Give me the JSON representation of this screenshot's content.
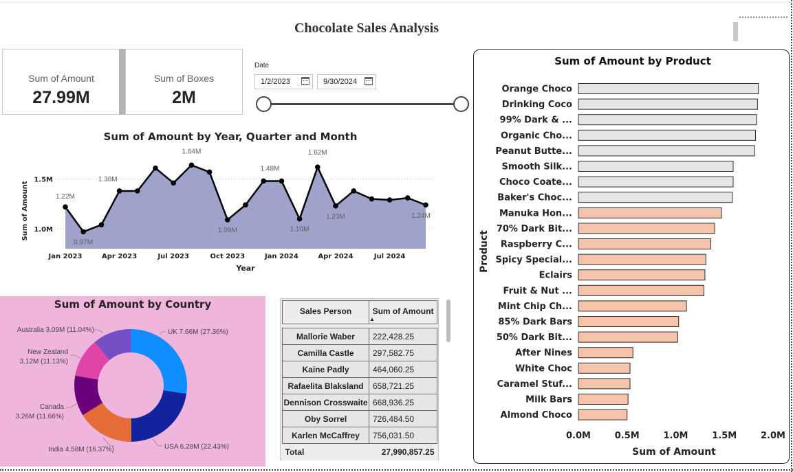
{
  "report": {
    "title": "Chocolate Sales Analysis"
  },
  "kpis": [
    {
      "label": "Sum of Amount",
      "value": "27.99M"
    },
    {
      "label": "Sum of Boxes",
      "value": "2M"
    }
  ],
  "date_slicer": {
    "title": "Date",
    "start": "1/2/2023",
    "end": "9/30/2024"
  },
  "colors": {
    "line": "#000000",
    "area": "#9fa2cb",
    "pie_panel": "#f0b5dc",
    "bar_gray": "#e6e6e6",
    "bar_salmon": "#f5c4aa"
  },
  "line_chart": {
    "title": "Sum of Amount by Year, Quarter and Month",
    "xlabel": "Year",
    "ylabel": "Sum of Amount",
    "ytick_labels": [
      "1.5M",
      "1.0M"
    ],
    "xtick_labels": [
      "Jan 2023",
      "Apr 2023",
      "Jul 2023",
      "Oct 2023",
      "Jan 2024",
      "Apr 2024",
      "Jul 2024"
    ],
    "point_labels": [
      "1.22M",
      "0.97M",
      "1.38M",
      "1.64M",
      "1.09M",
      "1.48M",
      "1.10M",
      "1.62M",
      "1.23M",
      "1.24M"
    ]
  },
  "donut_chart": {
    "title": "Sum of Amount by Country",
    "labels": [
      "UK 7.66M (27.36%)",
      "USA 6.28M (22.43%)",
      "India 4.58M (16.37%)",
      "Canada",
      "3.26M (11.66%)",
      "New Zealand",
      "3.12M (11.13%)",
      "Australia 3.09M (11.04%)"
    ]
  },
  "sales_table": {
    "headers": {
      "person": "Sales Person",
      "amount": "Sum of Amount"
    },
    "rows": [
      {
        "person": "Mallorie Waber",
        "amount": "222,428.25"
      },
      {
        "person": "Camilla Castle",
        "amount": "297,582.75"
      },
      {
        "person": "Kaine Padly",
        "amount": "464,060.25"
      },
      {
        "person": "Rafaelita Blaksland",
        "amount": "658,721.25"
      },
      {
        "person": "Dennison Crosswaite",
        "amount": "668,936.25"
      },
      {
        "person": "Oby Sorrel",
        "amount": "726,484.50"
      },
      {
        "person": "Karlen McCaffrey",
        "amount": "756,031.50"
      }
    ],
    "total_label": "Total",
    "total_value": "27,990,857.25"
  },
  "bar_chart": {
    "title": "Sum of Amount by Product",
    "ylabel": "Product",
    "xlabel": "Sum of Amount",
    "xtick_labels": [
      "0.0M",
      "0.5M",
      "1.0M",
      "1.5M",
      "2.0M"
    ],
    "product_labels": [
      "Orange Choco",
      "Drinking Coco",
      "99% Dark & ...",
      "Organic Cho...",
      "Peanut Butte...",
      "Smooth Silk...",
      "Choco Coate...",
      "Baker's Choc...",
      "Manuka Hon...",
      "70% Dark Bit...",
      "Raspberry C...",
      "Spicy Special...",
      "Eclairs",
      "Fruit & Nut ...",
      "Mint Chip Ch...",
      "85% Dark Bars",
      "50% Dark Bit...",
      "After Nines",
      "White Choc",
      "Caramel Stuf...",
      "Milk Bars",
      "Almond Choco"
    ]
  },
  "chart_data": [
    {
      "type": "area",
      "title": "Sum of Amount by Year, Quarter and Month",
      "xlabel": "Year",
      "ylabel": "Sum of Amount",
      "x": [
        "Jan 2023",
        "Feb 2023",
        "Mar 2023",
        "Apr 2023",
        "May 2023",
        "Jun 2023",
        "Jul 2023",
        "Aug 2023",
        "Sep 2023",
        "Oct 2023",
        "Nov 2023",
        "Dec 2023",
        "Jan 2024",
        "Feb 2024",
        "Mar 2024",
        "Apr 2024",
        "May 2024",
        "Jun 2024",
        "Jul 2024",
        "Aug 2024",
        "Sep 2024"
      ],
      "values": [
        1.22,
        0.97,
        1.04,
        1.38,
        1.38,
        1.61,
        1.46,
        1.64,
        1.57,
        1.09,
        1.24,
        1.48,
        1.48,
        1.1,
        1.62,
        1.23,
        1.38,
        1.3,
        1.29,
        1.31,
        1.24
      ],
      "ylim": [
        0.8,
        1.78
      ]
    },
    {
      "type": "pie",
      "title": "Sum of Amount by Country",
      "categories": [
        "UK",
        "USA",
        "India",
        "Canada",
        "New Zealand",
        "Australia"
      ],
      "values": [
        7.66,
        6.28,
        4.58,
        3.26,
        3.12,
        3.09
      ],
      "percents": [
        27.36,
        22.43,
        16.37,
        11.66,
        11.13,
        11.04
      ],
      "colors": [
        "#118dff",
        "#12239e",
        "#e66c37",
        "#6b007b",
        "#e044a7",
        "#744ec2"
      ]
    },
    {
      "type": "bar",
      "title": "Sum of Amount by Product",
      "xlabel": "Sum of Amount",
      "ylabel": "Product",
      "categories": [
        "Orange Choco",
        "Drinking Coco",
        "99% Dark & ...",
        "Organic Cho...",
        "Peanut Butte...",
        "Smooth Silk...",
        "Choco Coate...",
        "Baker's Choc...",
        "Manuka Hon...",
        "70% Dark Bit...",
        "Raspberry C...",
        "Spicy Special...",
        "Eclairs",
        "Fruit & Nut ...",
        "Mint Chip Ch...",
        "85% Dark Bars",
        "50% Dark Bit...",
        "After Nines",
        "White Choc",
        "Caramel Stuf...",
        "Milk Bars",
        "Almond Choco"
      ],
      "values": [
        1.85,
        1.84,
        1.83,
        1.82,
        1.81,
        1.59,
        1.59,
        1.58,
        1.47,
        1.4,
        1.36,
        1.31,
        1.3,
        1.29,
        1.11,
        1.03,
        1.02,
        0.56,
        0.53,
        0.53,
        0.51,
        0.5
      ],
      "highlighted_count": 8,
      "xlim": [
        0,
        2.0
      ]
    }
  ]
}
